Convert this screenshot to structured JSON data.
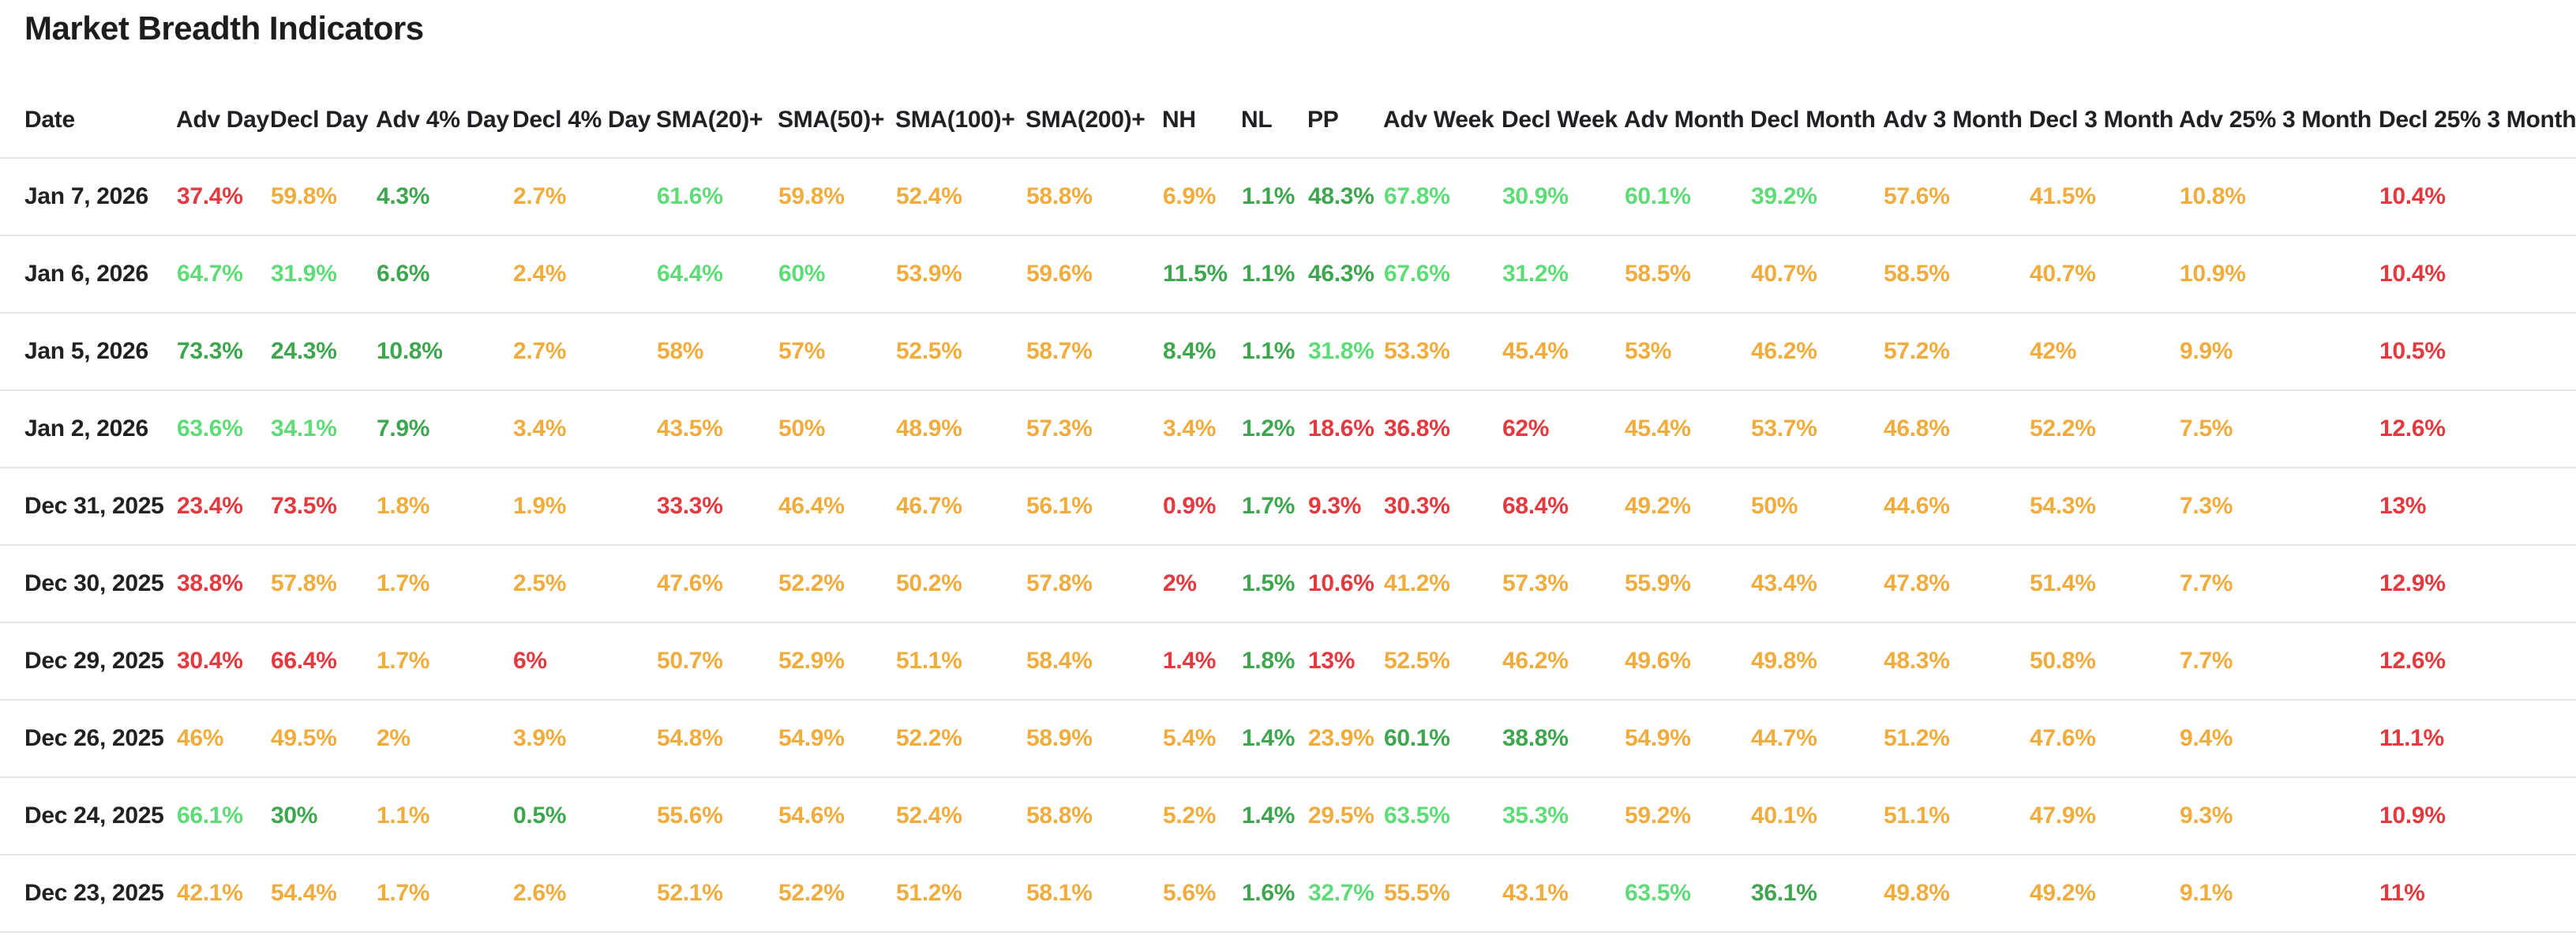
{
  "title": "Market Breadth Indicators",
  "colors": {
    "red": "#e4393f",
    "orange": "#f0ac3d",
    "green": "#3fa650",
    "light_green": "#5edc77",
    "heading_text": "#202124",
    "date_text": "#212121",
    "separator": "#e6e6e6",
    "background": "#ffffff"
  },
  "color_classes": {
    "r": "red",
    "o": "orange",
    "g": "green",
    "lg": "light_green"
  },
  "table": {
    "columns": [
      {
        "key": "date",
        "label": "Date"
      },
      {
        "key": "adv-day",
        "label": "Adv Day"
      },
      {
        "key": "decl-day",
        "label": "Decl Day"
      },
      {
        "key": "adv-4pct-day",
        "label": "Adv 4% Day"
      },
      {
        "key": "decl-4pct-day",
        "label": "Decl 4% Day"
      },
      {
        "key": "sma20-plus",
        "label": "SMA(20)+"
      },
      {
        "key": "sma50-plus",
        "label": "SMA(50)+"
      },
      {
        "key": "sma100-plus",
        "label": "SMA(100)+"
      },
      {
        "key": "sma200-plus",
        "label": "SMA(200)+"
      },
      {
        "key": "nh",
        "label": "NH"
      },
      {
        "key": "nl",
        "label": "NL"
      },
      {
        "key": "pp",
        "label": "PP"
      },
      {
        "key": "adv-week",
        "label": "Adv Week"
      },
      {
        "key": "decl-week",
        "label": "Decl Week"
      },
      {
        "key": "adv-month",
        "label": "Adv Month"
      },
      {
        "key": "decl-month",
        "label": "Decl Month"
      },
      {
        "key": "adv-3-month",
        "label": "Adv 3 Month"
      },
      {
        "key": "decl-3-month",
        "label": "Decl 3 Month"
      },
      {
        "key": "adv-25pct-3-month",
        "label": "Adv 25% 3 Month"
      },
      {
        "key": "decl-25pct-3-month",
        "label": "Decl 25% 3 Month"
      }
    ],
    "rows": [
      {
        "date": "Jan 7, 2026",
        "cells": [
          {
            "v": "37.4%",
            "c": "r"
          },
          {
            "v": "59.8%",
            "c": "o"
          },
          {
            "v": "4.3%",
            "c": "g"
          },
          {
            "v": "2.7%",
            "c": "o"
          },
          {
            "v": "61.6%",
            "c": "lg"
          },
          {
            "v": "59.8%",
            "c": "o"
          },
          {
            "v": "52.4%",
            "c": "o"
          },
          {
            "v": "58.8%",
            "c": "o"
          },
          {
            "v": "6.9%",
            "c": "o"
          },
          {
            "v": "1.1%",
            "c": "g"
          },
          {
            "v": "48.3%",
            "c": "g"
          },
          {
            "v": "67.8%",
            "c": "lg"
          },
          {
            "v": "30.9%",
            "c": "lg"
          },
          {
            "v": "60.1%",
            "c": "lg"
          },
          {
            "v": "39.2%",
            "c": "lg"
          },
          {
            "v": "57.6%",
            "c": "o"
          },
          {
            "v": "41.5%",
            "c": "o"
          },
          {
            "v": "10.8%",
            "c": "o"
          },
          {
            "v": "10.4%",
            "c": "r"
          }
        ]
      },
      {
        "date": "Jan 6, 2026",
        "cells": [
          {
            "v": "64.7%",
            "c": "lg"
          },
          {
            "v": "31.9%",
            "c": "lg"
          },
          {
            "v": "6.6%",
            "c": "g"
          },
          {
            "v": "2.4%",
            "c": "o"
          },
          {
            "v": "64.4%",
            "c": "lg"
          },
          {
            "v": "60%",
            "c": "lg"
          },
          {
            "v": "53.9%",
            "c": "o"
          },
          {
            "v": "59.6%",
            "c": "o"
          },
          {
            "v": "11.5%",
            "c": "g"
          },
          {
            "v": "1.1%",
            "c": "g"
          },
          {
            "v": "46.3%",
            "c": "g"
          },
          {
            "v": "67.6%",
            "c": "lg"
          },
          {
            "v": "31.2%",
            "c": "lg"
          },
          {
            "v": "58.5%",
            "c": "o"
          },
          {
            "v": "40.7%",
            "c": "o"
          },
          {
            "v": "58.5%",
            "c": "o"
          },
          {
            "v": "40.7%",
            "c": "o"
          },
          {
            "v": "10.9%",
            "c": "o"
          },
          {
            "v": "10.4%",
            "c": "r"
          }
        ]
      },
      {
        "date": "Jan 5, 2026",
        "cells": [
          {
            "v": "73.3%",
            "c": "g"
          },
          {
            "v": "24.3%",
            "c": "g"
          },
          {
            "v": "10.8%",
            "c": "g"
          },
          {
            "v": "2.7%",
            "c": "o"
          },
          {
            "v": "58%",
            "c": "o"
          },
          {
            "v": "57%",
            "c": "o"
          },
          {
            "v": "52.5%",
            "c": "o"
          },
          {
            "v": "58.7%",
            "c": "o"
          },
          {
            "v": "8.4%",
            "c": "g"
          },
          {
            "v": "1.1%",
            "c": "g"
          },
          {
            "v": "31.8%",
            "c": "lg"
          },
          {
            "v": "53.3%",
            "c": "o"
          },
          {
            "v": "45.4%",
            "c": "o"
          },
          {
            "v": "53%",
            "c": "o"
          },
          {
            "v": "46.2%",
            "c": "o"
          },
          {
            "v": "57.2%",
            "c": "o"
          },
          {
            "v": "42%",
            "c": "o"
          },
          {
            "v": "9.9%",
            "c": "o"
          },
          {
            "v": "10.5%",
            "c": "r"
          }
        ]
      },
      {
        "date": "Jan 2, 2026",
        "cells": [
          {
            "v": "63.6%",
            "c": "lg"
          },
          {
            "v": "34.1%",
            "c": "lg"
          },
          {
            "v": "7.9%",
            "c": "g"
          },
          {
            "v": "3.4%",
            "c": "o"
          },
          {
            "v": "43.5%",
            "c": "o"
          },
          {
            "v": "50%",
            "c": "o"
          },
          {
            "v": "48.9%",
            "c": "o"
          },
          {
            "v": "57.3%",
            "c": "o"
          },
          {
            "v": "3.4%",
            "c": "o"
          },
          {
            "v": "1.2%",
            "c": "g"
          },
          {
            "v": "18.6%",
            "c": "r"
          },
          {
            "v": "36.8%",
            "c": "r"
          },
          {
            "v": "62%",
            "c": "r"
          },
          {
            "v": "45.4%",
            "c": "o"
          },
          {
            "v": "53.7%",
            "c": "o"
          },
          {
            "v": "46.8%",
            "c": "o"
          },
          {
            "v": "52.2%",
            "c": "o"
          },
          {
            "v": "7.5%",
            "c": "o"
          },
          {
            "v": "12.6%",
            "c": "r"
          }
        ]
      },
      {
        "date": "Dec 31, 2025",
        "cells": [
          {
            "v": "23.4%",
            "c": "r"
          },
          {
            "v": "73.5%",
            "c": "r"
          },
          {
            "v": "1.8%",
            "c": "o"
          },
          {
            "v": "1.9%",
            "c": "o"
          },
          {
            "v": "33.3%",
            "c": "r"
          },
          {
            "v": "46.4%",
            "c": "o"
          },
          {
            "v": "46.7%",
            "c": "o"
          },
          {
            "v": "56.1%",
            "c": "o"
          },
          {
            "v": "0.9%",
            "c": "r"
          },
          {
            "v": "1.7%",
            "c": "g"
          },
          {
            "v": "9.3%",
            "c": "r"
          },
          {
            "v": "30.3%",
            "c": "r"
          },
          {
            "v": "68.4%",
            "c": "r"
          },
          {
            "v": "49.2%",
            "c": "o"
          },
          {
            "v": "50%",
            "c": "o"
          },
          {
            "v": "44.6%",
            "c": "o"
          },
          {
            "v": "54.3%",
            "c": "o"
          },
          {
            "v": "7.3%",
            "c": "o"
          },
          {
            "v": "13%",
            "c": "r"
          }
        ]
      },
      {
        "date": "Dec 30, 2025",
        "cells": [
          {
            "v": "38.8%",
            "c": "r"
          },
          {
            "v": "57.8%",
            "c": "o"
          },
          {
            "v": "1.7%",
            "c": "o"
          },
          {
            "v": "2.5%",
            "c": "o"
          },
          {
            "v": "47.6%",
            "c": "o"
          },
          {
            "v": "52.2%",
            "c": "o"
          },
          {
            "v": "50.2%",
            "c": "o"
          },
          {
            "v": "57.8%",
            "c": "o"
          },
          {
            "v": "2%",
            "c": "r"
          },
          {
            "v": "1.5%",
            "c": "g"
          },
          {
            "v": "10.6%",
            "c": "r"
          },
          {
            "v": "41.2%",
            "c": "o"
          },
          {
            "v": "57.3%",
            "c": "o"
          },
          {
            "v": "55.9%",
            "c": "o"
          },
          {
            "v": "43.4%",
            "c": "o"
          },
          {
            "v": "47.8%",
            "c": "o"
          },
          {
            "v": "51.4%",
            "c": "o"
          },
          {
            "v": "7.7%",
            "c": "o"
          },
          {
            "v": "12.9%",
            "c": "r"
          }
        ]
      },
      {
        "date": "Dec 29, 2025",
        "cells": [
          {
            "v": "30.4%",
            "c": "r"
          },
          {
            "v": "66.4%",
            "c": "r"
          },
          {
            "v": "1.7%",
            "c": "o"
          },
          {
            "v": "6%",
            "c": "r"
          },
          {
            "v": "50.7%",
            "c": "o"
          },
          {
            "v": "52.9%",
            "c": "o"
          },
          {
            "v": "51.1%",
            "c": "o"
          },
          {
            "v": "58.4%",
            "c": "o"
          },
          {
            "v": "1.4%",
            "c": "r"
          },
          {
            "v": "1.8%",
            "c": "g"
          },
          {
            "v": "13%",
            "c": "r"
          },
          {
            "v": "52.5%",
            "c": "o"
          },
          {
            "v": "46.2%",
            "c": "o"
          },
          {
            "v": "49.6%",
            "c": "o"
          },
          {
            "v": "49.8%",
            "c": "o"
          },
          {
            "v": "48.3%",
            "c": "o"
          },
          {
            "v": "50.8%",
            "c": "o"
          },
          {
            "v": "7.7%",
            "c": "o"
          },
          {
            "v": "12.6%",
            "c": "r"
          }
        ]
      },
      {
        "date": "Dec 26, 2025",
        "cells": [
          {
            "v": "46%",
            "c": "o"
          },
          {
            "v": "49.5%",
            "c": "o"
          },
          {
            "v": "2%",
            "c": "o"
          },
          {
            "v": "3.9%",
            "c": "o"
          },
          {
            "v": "54.8%",
            "c": "o"
          },
          {
            "v": "54.9%",
            "c": "o"
          },
          {
            "v": "52.2%",
            "c": "o"
          },
          {
            "v": "58.9%",
            "c": "o"
          },
          {
            "v": "5.4%",
            "c": "o"
          },
          {
            "v": "1.4%",
            "c": "g"
          },
          {
            "v": "23.9%",
            "c": "o"
          },
          {
            "v": "60.1%",
            "c": "g"
          },
          {
            "v": "38.8%",
            "c": "g"
          },
          {
            "v": "54.9%",
            "c": "o"
          },
          {
            "v": "44.7%",
            "c": "o"
          },
          {
            "v": "51.2%",
            "c": "o"
          },
          {
            "v": "47.6%",
            "c": "o"
          },
          {
            "v": "9.4%",
            "c": "o"
          },
          {
            "v": "11.1%",
            "c": "r"
          }
        ]
      },
      {
        "date": "Dec 24, 2025",
        "cells": [
          {
            "v": "66.1%",
            "c": "lg"
          },
          {
            "v": "30%",
            "c": "g"
          },
          {
            "v": "1.1%",
            "c": "o"
          },
          {
            "v": "0.5%",
            "c": "g"
          },
          {
            "v": "55.6%",
            "c": "o"
          },
          {
            "v": "54.6%",
            "c": "o"
          },
          {
            "v": "52.4%",
            "c": "o"
          },
          {
            "v": "58.8%",
            "c": "o"
          },
          {
            "v": "5.2%",
            "c": "o"
          },
          {
            "v": "1.4%",
            "c": "g"
          },
          {
            "v": "29.5%",
            "c": "o"
          },
          {
            "v": "63.5%",
            "c": "lg"
          },
          {
            "v": "35.3%",
            "c": "lg"
          },
          {
            "v": "59.2%",
            "c": "o"
          },
          {
            "v": "40.1%",
            "c": "o"
          },
          {
            "v": "51.1%",
            "c": "o"
          },
          {
            "v": "47.9%",
            "c": "o"
          },
          {
            "v": "9.3%",
            "c": "o"
          },
          {
            "v": "10.9%",
            "c": "r"
          }
        ]
      },
      {
        "date": "Dec 23, 2025",
        "cells": [
          {
            "v": "42.1%",
            "c": "o"
          },
          {
            "v": "54.4%",
            "c": "o"
          },
          {
            "v": "1.7%",
            "c": "o"
          },
          {
            "v": "2.6%",
            "c": "o"
          },
          {
            "v": "52.1%",
            "c": "o"
          },
          {
            "v": "52.2%",
            "c": "o"
          },
          {
            "v": "51.2%",
            "c": "o"
          },
          {
            "v": "58.1%",
            "c": "o"
          },
          {
            "v": "5.6%",
            "c": "o"
          },
          {
            "v": "1.6%",
            "c": "g"
          },
          {
            "v": "32.7%",
            "c": "lg"
          },
          {
            "v": "55.5%",
            "c": "o"
          },
          {
            "v": "43.1%",
            "c": "o"
          },
          {
            "v": "63.5%",
            "c": "lg"
          },
          {
            "v": "36.1%",
            "c": "g"
          },
          {
            "v": "49.8%",
            "c": "o"
          },
          {
            "v": "49.2%",
            "c": "o"
          },
          {
            "v": "9.1%",
            "c": "o"
          },
          {
            "v": "11%",
            "c": "r"
          }
        ]
      }
    ]
  }
}
